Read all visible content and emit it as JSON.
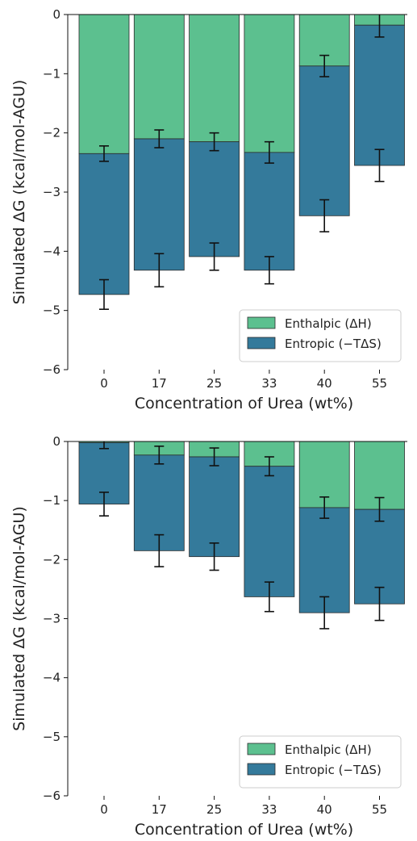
{
  "chart_data": [
    {
      "type": "bar",
      "stacked": true,
      "categories": [
        "0",
        "17",
        "25",
        "33",
        "40",
        "55"
      ],
      "xlabel": "Concentration of Urea (wt%)",
      "ylabel": "Simulated ΔG (kcal/mol-AGU)",
      "ylim": [
        -6,
        0
      ],
      "yticks": [
        "0",
        "−1",
        "−2",
        "−3",
        "−4",
        "−5",
        "−6"
      ],
      "grid": false,
      "legend_position": "lower-right",
      "series": [
        {
          "name": "Enthalpic (ΔH)",
          "color": "#5cc08f",
          "values": [
            -2.35,
            -2.1,
            -2.15,
            -2.33,
            -0.87,
            -0.18
          ],
          "errors": [
            0.13,
            0.15,
            0.15,
            0.18,
            0.18,
            0.2
          ]
        },
        {
          "name": "Entropic (−TΔS)",
          "color": "#347a9b",
          "values": [
            -2.38,
            -2.22,
            -1.94,
            -1.99,
            -2.53,
            -2.37
          ],
          "errors": [
            0.25,
            0.28,
            0.23,
            0.23,
            0.27,
            0.27
          ]
        }
      ]
    },
    {
      "type": "bar",
      "stacked": true,
      "categories": [
        "0",
        "17",
        "25",
        "33",
        "40",
        "55"
      ],
      "xlabel": "Concentration of Urea (wt%)",
      "ylabel": "Simulated ΔG (kcal/mol-AGU)",
      "ylim": [
        -6,
        0
      ],
      "yticks": [
        "0",
        "−1",
        "−2",
        "−3",
        "−4",
        "−5",
        "−6"
      ],
      "grid": false,
      "legend_position": "lower-right",
      "series": [
        {
          "name": "Enthalpic (ΔH)",
          "color": "#5cc08f",
          "values": [
            -0.02,
            -0.23,
            -0.26,
            -0.42,
            -1.12,
            -1.15
          ],
          "errors": [
            0.1,
            0.15,
            0.15,
            0.16,
            0.18,
            0.2
          ]
        },
        {
          "name": "Entropic (−TΔS)",
          "color": "#347a9b",
          "values": [
            -1.04,
            -1.62,
            -1.69,
            -2.21,
            -1.78,
            -1.6
          ],
          "errors": [
            0.2,
            0.27,
            0.23,
            0.25,
            0.27,
            0.28
          ]
        }
      ]
    }
  ]
}
